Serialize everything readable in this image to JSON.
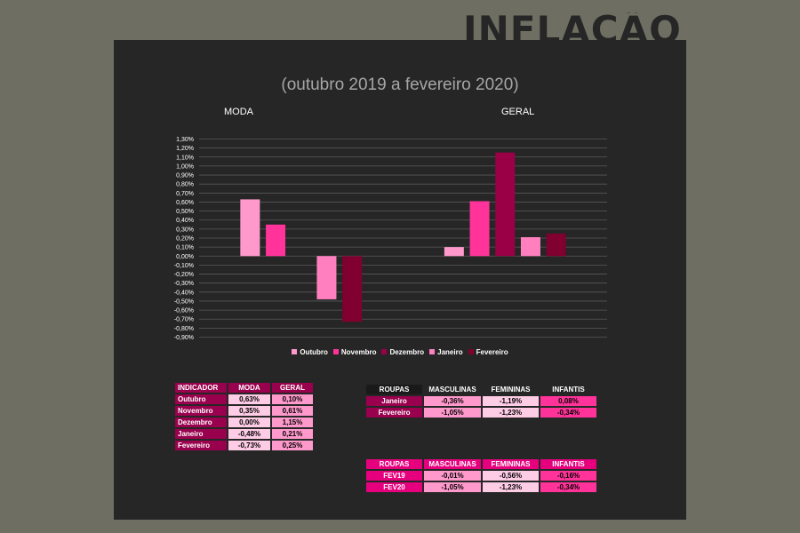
{
  "header": {
    "title": "INFLAÇÃO"
  },
  "chart_data": {
    "type": "bar",
    "subtitle": "(outubro 2019 a fevereiro 2020)",
    "categories": [
      "MODA",
      "GERAL"
    ],
    "series": [
      {
        "name": "Outubro",
        "color": "#ff99cc",
        "values": [
          0.63,
          0.1
        ]
      },
      {
        "name": "Novembro",
        "color": "#ff3399",
        "values": [
          0.35,
          0.61
        ]
      },
      {
        "name": "Dezembro",
        "color": "#990045",
        "values": [
          0.0,
          1.15
        ]
      },
      {
        "name": "Janeiro",
        "color": "#ff7fbf",
        "values": [
          -0.48,
          0.21
        ]
      },
      {
        "name": "Fevereiro",
        "color": "#800030",
        "values": [
          -0.73,
          0.25
        ]
      }
    ],
    "ylim": [
      -0.9,
      1.3
    ],
    "ytick_step": 0.1,
    "y_format": "percent_2dp_comma",
    "grid": true,
    "legend_position": "bottom"
  },
  "tables": {
    "indicador": {
      "headers": [
        "INDICADOR",
        "MODA",
        "GERAL"
      ],
      "rows": [
        [
          "Outubro",
          "0,63%",
          "0,10%"
        ],
        [
          "Novembro",
          "0,35%",
          "0,61%"
        ],
        [
          "Dezembro",
          "0,00%",
          "1,15%"
        ],
        [
          "Janeiro",
          "-0,48%",
          "0,21%"
        ],
        [
          "Fevereiro",
          "-0,73%",
          "0,25%"
        ]
      ]
    },
    "roupas_mes": {
      "headers": [
        "ROUPAS",
        "MASCULINAS",
        "FEMININAS",
        "INFANTIS"
      ],
      "rows": [
        [
          "Janeiro",
          "-0,36%",
          "-1,19%",
          "0,08%"
        ],
        [
          "Fevereiro",
          "-1,05%",
          "-1,23%",
          "-0,34%"
        ]
      ]
    },
    "roupas_ano": {
      "headers": [
        "ROUPAS",
        "MASCULINAS",
        "FEMININAS",
        "INFANTIS"
      ],
      "rows": [
        [
          "FEV19",
          "-0,01%",
          "-0,56%",
          "-0,16%"
        ],
        [
          "FEV20",
          "-1,05%",
          "-1,23%",
          "-0,34%"
        ]
      ]
    }
  },
  "colors": {
    "background": "#6e6f62",
    "panel": "#262626",
    "dark_magenta": "#99004d",
    "magenta": "#e6007e",
    "pink": "#ff3399",
    "light_pink": "#ff99cc",
    "pale_pink": "#ffcce6",
    "black_header": "#1a1a1a"
  }
}
